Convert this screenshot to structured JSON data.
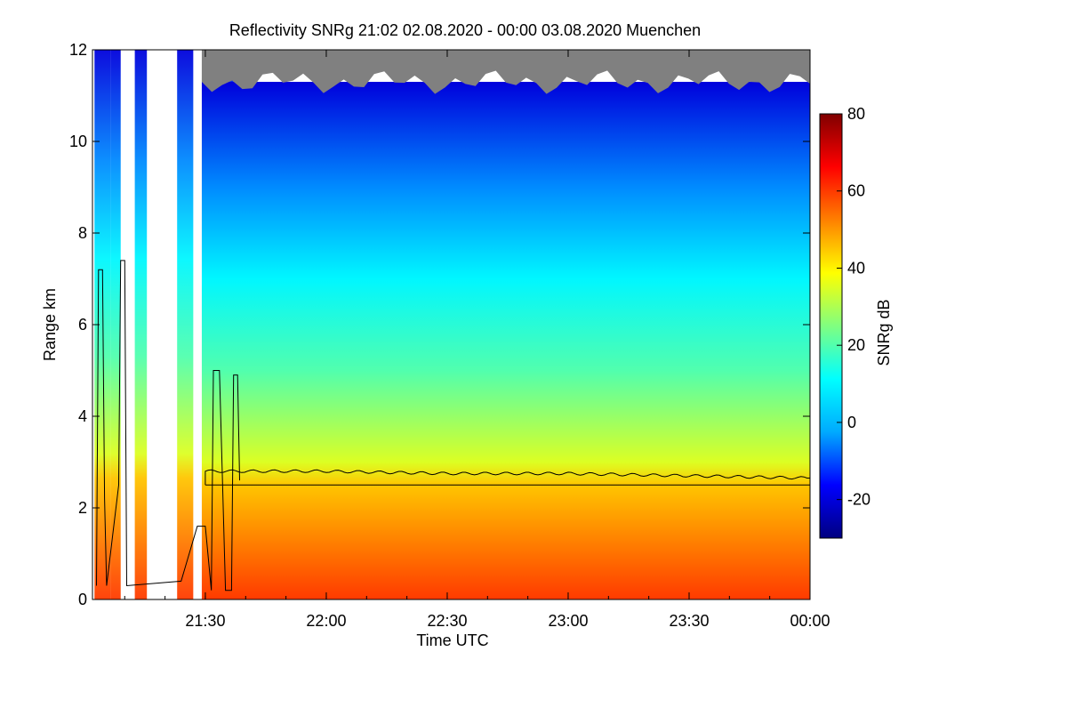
{
  "chart_data": {
    "type": "heatmap",
    "title": "Reflectivity SNRg   21:02 02.08.2020 - 00:00 03.08.2020 Muenchen",
    "xlabel": "Time UTC",
    "ylabel": "Range km",
    "x_ticks": [
      "21:30",
      "22:00",
      "22:30",
      "23:00",
      "23:30",
      "00:00"
    ],
    "x_range": [
      "21:02",
      "00:00"
    ],
    "y_ticks": [
      0,
      2,
      4,
      6,
      8,
      10,
      12
    ],
    "ylim": [
      0,
      12
    ],
    "colorbar": {
      "label": "SNRg dB",
      "ticks": [
        -20,
        0,
        20,
        40,
        60,
        80
      ],
      "range": [
        -30,
        80
      ],
      "colors": [
        "#000080",
        "#0000ff",
        "#00aaff",
        "#00ffff",
        "#80ff80",
        "#ffff00",
        "#ff8000",
        "#ff0000",
        "#800000"
      ]
    },
    "no_signal_color": "#808080",
    "profile_bands": [
      {
        "top_km": 11.3,
        "snr_db": -20
      },
      {
        "top_km": 9.0,
        "snr_db": -5
      },
      {
        "top_km": 7.0,
        "snr_db": 10
      },
      {
        "top_km": 5.0,
        "snr_db": 20
      },
      {
        "top_km": 3.0,
        "snr_db": 35
      },
      {
        "top_km": 2.5,
        "snr_db": 45
      },
      {
        "top_km": 0.0,
        "snr_db": 60
      }
    ],
    "melting_layer_km": [
      {
        "time": "21:30",
        "km": 2.8
      },
      {
        "time": "22:00",
        "km": 2.8
      },
      {
        "time": "22:30",
        "km": 2.75
      },
      {
        "time": "23:00",
        "km": 2.75
      },
      {
        "time": "23:30",
        "km": 2.7
      },
      {
        "time": "00:00",
        "km": 2.65
      }
    ],
    "lower_line_km": 2.5
  }
}
